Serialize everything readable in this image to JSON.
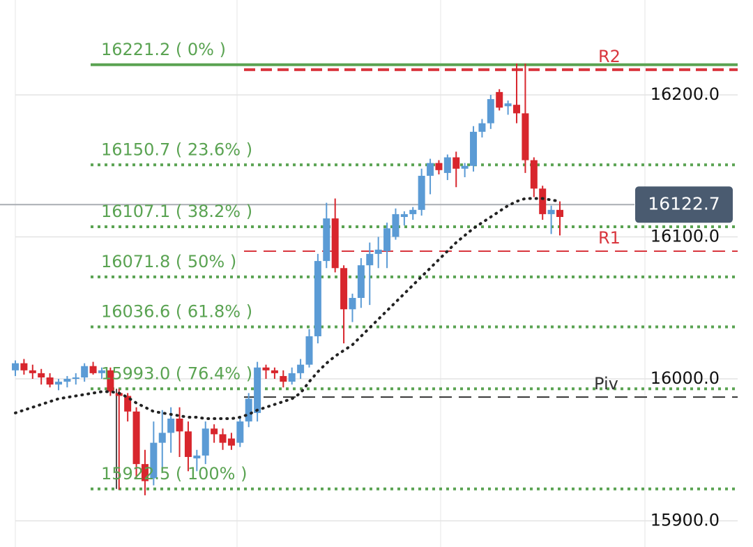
{
  "chart_data": {
    "type": "candlestick",
    "categories": [
      null,
      null,
      null,
      null,
      null,
      null,
      null,
      null,
      null,
      null,
      null,
      null,
      null,
      null,
      null,
      null,
      null,
      null,
      null,
      null,
      null,
      null,
      null,
      null,
      null,
      null,
      null,
      null,
      null,
      null,
      null,
      null,
      null,
      null,
      null,
      null,
      null,
      null,
      null,
      null,
      null,
      null,
      null,
      null,
      null,
      null,
      null,
      null,
      null,
      null,
      null,
      null,
      null,
      null,
      null,
      null,
      null,
      null,
      null,
      null,
      null,
      null,
      null,
      null
    ],
    "open": [
      16006,
      16011,
      16006,
      16004,
      16001,
      15996,
      15998,
      16000,
      16001,
      16009,
      16004,
      16006,
      15990,
      15988,
      15977,
      15940,
      15930,
      15955,
      15962,
      15972,
      15963,
      15944,
      15946,
      15965,
      15961,
      15958,
      15955,
      15970,
      15976,
      16008,
      16006,
      16002,
      15998,
      16004,
      16010,
      16030,
      16083,
      16113,
      16078,
      16049,
      16057,
      16080,
      16088,
      16090,
      16100,
      16114,
      16116,
      16119,
      16143,
      16152,
      16145,
      16156,
      16148,
      16150,
      16174,
      16180,
      16202,
      16192,
      16193,
      16187,
      16154,
      16134,
      16116,
      16119
    ],
    "high": [
      16013,
      16014,
      16010,
      16007,
      16004,
      16000,
      16002,
      16004,
      16011,
      16012,
      16008,
      16008,
      15993,
      15990,
      15980,
      15950,
      15970,
      15978,
      15980,
      15980,
      15970,
      15950,
      15970,
      15968,
      15965,
      15962,
      15974,
      15990,
      16012,
      16010,
      16008,
      16006,
      16008,
      16014,
      16035,
      16088,
      16124,
      16127,
      16080,
      16060,
      16085,
      16096,
      16100,
      16110,
      16120,
      16118,
      16121,
      16148,
      16155,
      16154,
      16158,
      16160,
      16152,
      16178,
      16183,
      16200,
      16204,
      16196,
      16222,
      16222,
      16156,
      16136,
      16122,
      16125
    ],
    "low": [
      16002,
      16003,
      16000,
      15996,
      15994,
      15992,
      15994,
      15996,
      15998,
      16003,
      16000,
      15988,
      15922,
      15970,
      15930,
      15918,
      15925,
      15935,
      15948,
      15945,
      15935,
      15935,
      15940,
      15955,
      15950,
      15950,
      15952,
      15966,
      15970,
      16000,
      16000,
      15994,
      15996,
      16000,
      16008,
      16025,
      16078,
      16075,
      16025,
      16040,
      16050,
      16052,
      16078,
      16078,
      16098,
      16108,
      16112,
      16115,
      16130,
      16144,
      16140,
      16135,
      16142,
      16146,
      16170,
      16176,
      16189,
      16186,
      16180,
      16145,
      16128,
      16112,
      16102,
      16101
    ],
    "close": [
      16011,
      16006,
      16004,
      16001,
      15996,
      15998,
      16000,
      16001,
      16009,
      16004,
      16006,
      15991,
      15988,
      15977,
      15940,
      15928,
      15955,
      15962,
      15972,
      15963,
      15945,
      15946,
      15965,
      15961,
      15955,
      15953,
      15970,
      15986,
      16008,
      16006,
      16004,
      15998,
      16004,
      16010,
      16030,
      16083,
      16113,
      16078,
      16049,
      16057,
      16080,
      16088,
      16091,
      16106,
      16116,
      16116,
      16119,
      16143,
      16152,
      16147,
      16156,
      16148,
      16150,
      16174,
      16180,
      16197,
      16191,
      16194,
      16187,
      16154,
      16134,
      16116,
      16119,
      16114
    ],
    "up_color": "#5b9bd5",
    "down_color": "#d8262d",
    "moving_average": {
      "color": "#222222",
      "values": [
        15976,
        15978,
        15980,
        15982,
        15984,
        15986,
        15987,
        15988,
        15989,
        15990,
        15991,
        15991,
        15990,
        15987,
        15983,
        15980,
        15977,
        15976,
        15975,
        15974,
        15973,
        15973,
        15972,
        15972,
        15972,
        15972,
        15973,
        15975,
        15978,
        15980,
        15982,
        15984,
        15986,
        15990,
        15998,
        16005,
        16011,
        16016,
        16020,
        16024,
        16030,
        16036,
        16042,
        16048,
        16054,
        16060,
        16066,
        16072,
        16078,
        16084,
        16090,
        16096,
        16101,
        16106,
        16110,
        16114,
        16118,
        16122,
        16125,
        16127,
        16127,
        16127,
        16126,
        16125
      ]
    },
    "fib_color": "#5aa352",
    "fib_levels": [
      {
        "value": 16221.2,
        "label": "16221.2 ( 0% )"
      },
      {
        "value": 16150.7,
        "label": "16150.7 ( 23.6% )"
      },
      {
        "value": 16107.1,
        "label": "16107.1 ( 38.2% )"
      },
      {
        "value": 16071.8,
        "label": "16071.8 ( 50% )"
      },
      {
        "value": 16036.6,
        "label": "16036.6 ( 61.8% )"
      },
      {
        "value": 15993.0,
        "label": "15993.0 ( 76.4% )"
      },
      {
        "value": 15922.5,
        "label": "15922.5 ( 100% )"
      }
    ],
    "pivots": [
      {
        "name": "R2",
        "value": 16217.7,
        "color": "#d9363e"
      },
      {
        "name": "R1",
        "value": 16089.9,
        "color": "#d9363e"
      },
      {
        "name": "Piv",
        "value": 15987.2,
        "color": "#333333"
      }
    ],
    "last_price": 16122.7,
    "ylim": [
      15881.6,
      16266.8
    ],
    "yticks": [
      {
        "value": 15900,
        "label": "15900.0"
      },
      {
        "value": 16000,
        "label": "16000.0"
      },
      {
        "value": 16100,
        "label": "16100.0"
      },
      {
        "value": 16200,
        "label": "16200.0"
      }
    ],
    "grid": true
  }
}
